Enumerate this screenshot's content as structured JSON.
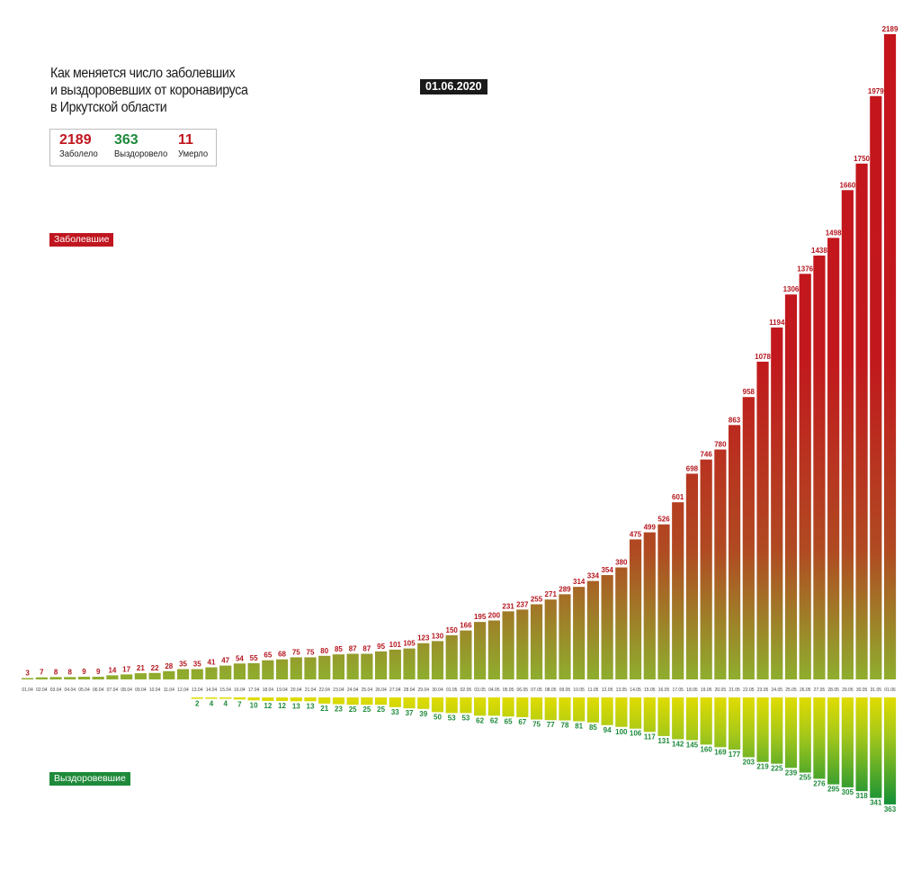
{
  "header": {
    "title_lines": [
      "Как меняется число заболевших",
      "и выздоровевших от коронавируса",
      "в Иркутской области"
    ],
    "date": "01.06.2020"
  },
  "stats": {
    "infected": {
      "value": "2189",
      "label": "Заболело",
      "color": "#c0161f"
    },
    "recovered": {
      "value": "363",
      "label": "Выздоровело",
      "color": "#1e8a3a"
    },
    "died": {
      "value": "11",
      "label": "Умерло",
      "color": "#c0161f"
    }
  },
  "legend": {
    "infected_label": "Заболевшие",
    "recovered_label": "Выздоровевшие",
    "infected_color": "#c0161f",
    "recovered_color": "#1e8a3a"
  },
  "chart_data": {
    "type": "bar",
    "title": "Как меняется число заболевших и выздоровевших от коронавируса в Иркутской области",
    "categories": [
      "01.04",
      "02.04",
      "03.04",
      "04.04",
      "05.04",
      "06.04",
      "07.04",
      "08.04",
      "09.04",
      "10.04",
      "11.04",
      "12.04",
      "13.04",
      "14.04",
      "15.04",
      "16.04",
      "17.04",
      "18.04",
      "19.04",
      "20.04",
      "21.04",
      "22.04",
      "23.04",
      "24.04",
      "25.04",
      "26.04",
      "27.04",
      "28.04",
      "29.04",
      "30.04",
      "01.05",
      "02.05",
      "03.05",
      "04.05",
      "05.05",
      "06.05",
      "07.05",
      "08.05",
      "09.05",
      "10.05",
      "11.05",
      "12.05",
      "13.05",
      "14.05",
      "15.05",
      "16.05",
      "17.05",
      "18.05",
      "19.05",
      "20.05",
      "21.05",
      "22.05",
      "23.05",
      "24.05",
      "25.05",
      "26.05",
      "27.05",
      "28.05",
      "29.05",
      "30.05",
      "31.05",
      "01.06"
    ],
    "series": [
      {
        "name": "Заболевшие",
        "direction": "up",
        "values": [
          3,
          7,
          8,
          8,
          9,
          9,
          14,
          17,
          21,
          22,
          28,
          35,
          35,
          41,
          47,
          54,
          55,
          65,
          68,
          75,
          75,
          80,
          85,
          87,
          87,
          95,
          101,
          105,
          123,
          130,
          150,
          166,
          195,
          200,
          231,
          237,
          255,
          271,
          289,
          314,
          334,
          354,
          380,
          475,
          499,
          526,
          601,
          698,
          746,
          780,
          863,
          958,
          1078,
          1194,
          1306,
          1376,
          1438,
          1498,
          1660,
          1750,
          1979,
          2189
        ]
      },
      {
        "name": "Выздоровевшие",
        "direction": "down",
        "values": [
          null,
          null,
          null,
          null,
          null,
          null,
          null,
          null,
          null,
          null,
          null,
          null,
          2,
          4,
          4,
          7,
          10,
          12,
          12,
          13,
          13,
          21,
          23,
          25,
          25,
          25,
          33,
          37,
          39,
          50,
          53,
          53,
          62,
          62,
          65,
          67,
          75,
          77,
          78,
          81,
          85,
          94,
          100,
          106,
          117,
          131,
          142,
          145,
          160,
          169,
          177,
          203,
          219,
          225,
          239,
          255,
          276,
          295,
          305,
          318,
          341,
          363
        ]
      }
    ],
    "xlabel": "",
    "ylabel": "",
    "ylim": [
      0,
      2189
    ],
    "grid": false
  }
}
